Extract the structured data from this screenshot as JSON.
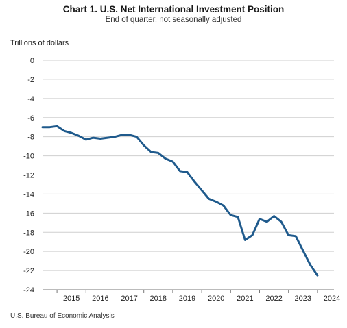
{
  "title": "Chart 1. U.S. Net International Investment Position",
  "subtitle": "End of quarter, not seasonally adjusted",
  "source": "U.S. Bureau of Economic Analysis",
  "chart_data": {
    "type": "line",
    "title": "Chart 1. U.S. Net International Investment Position",
    "subtitle": "End of quarter, not seasonally adjusted",
    "ylabel": "Trillions of dollars",
    "xlabel": "",
    "ylim": [
      -24,
      0
    ],
    "yticks": [
      0,
      -2,
      -4,
      -6,
      -8,
      -10,
      -12,
      -14,
      -16,
      -18,
      -20,
      -22,
      -24
    ],
    "xtick_labels": [
      "2015",
      "2016",
      "2017",
      "2018",
      "2019",
      "2020",
      "2021",
      "2022",
      "2023",
      "2024"
    ],
    "grid": true,
    "line_color": "#1f5a8c",
    "series": [
      {
        "x": [
          "2014Q3",
          "2014Q4",
          "2015Q1",
          "2015Q2",
          "2015Q3",
          "2015Q4",
          "2016Q1",
          "2016Q2",
          "2016Q3",
          "2016Q4",
          "2017Q1",
          "2017Q2",
          "2017Q3",
          "2017Q4",
          "2018Q1",
          "2018Q2",
          "2018Q3",
          "2018Q4",
          "2019Q1",
          "2019Q2",
          "2019Q3",
          "2019Q4",
          "2020Q1",
          "2020Q2",
          "2020Q3",
          "2020Q4",
          "2021Q1",
          "2021Q2",
          "2021Q3",
          "2021Q4",
          "2022Q1",
          "2022Q2",
          "2022Q3",
          "2022Q4",
          "2023Q1",
          "2023Q2",
          "2023Q3",
          "2023Q4",
          "2024Q1",
          "2024Q2"
        ],
        "values": [
          -7.0,
          -7.0,
          -6.9,
          -7.4,
          -7.6,
          -7.9,
          -8.3,
          -8.1,
          -8.2,
          -8.1,
          -8.0,
          -7.8,
          -7.8,
          -8.0,
          -8.9,
          -9.6,
          -9.7,
          -10.3,
          -10.6,
          -11.6,
          -11.7,
          -12.7,
          -13.6,
          -14.5,
          -14.8,
          -15.2,
          -16.2,
          -16.4,
          -18.8,
          -18.3,
          -16.6,
          -16.9,
          -16.3,
          -16.9,
          -18.3,
          -18.4,
          -19.9,
          -21.4,
          -22.5,
          null
        ]
      }
    ]
  }
}
